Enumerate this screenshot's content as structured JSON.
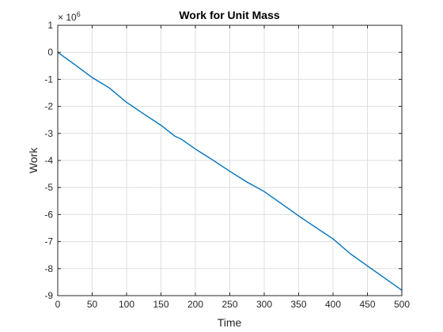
{
  "chart_data": {
    "type": "line",
    "title": "Work for Unit Mass",
    "xlabel": "Time",
    "ylabel": "Work",
    "xlim": [
      0,
      500
    ],
    "ylim": [
      -9000000,
      1000000
    ],
    "x_ticks": [
      0,
      50,
      100,
      150,
      200,
      250,
      300,
      350,
      400,
      450,
      500
    ],
    "y_ticks": [
      -9,
      -8,
      -7,
      -6,
      -5,
      -4,
      -3,
      -2,
      -1,
      0,
      1
    ],
    "y_exponent_base": "× 10",
    "y_exponent_power": "6",
    "grid": true,
    "line_color": "#0072BD",
    "series": [
      {
        "x": [
          0,
          25,
          50,
          75,
          100,
          125,
          150,
          170,
          180,
          200,
          225,
          250,
          275,
          300,
          325,
          350,
          375,
          400,
          425,
          450,
          475,
          500
        ],
        "values": [
          0,
          -460000,
          -930000,
          -1320000,
          -1850000,
          -2280000,
          -2700000,
          -3100000,
          -3220000,
          -3580000,
          -3980000,
          -4400000,
          -4800000,
          -5150000,
          -5600000,
          -6050000,
          -6480000,
          -6900000,
          -7450000,
          -7900000,
          -8350000,
          -8800000
        ]
      }
    ]
  }
}
